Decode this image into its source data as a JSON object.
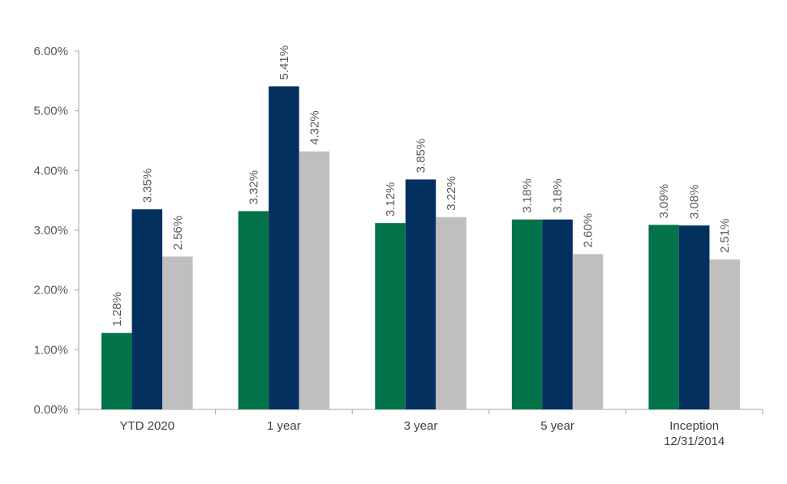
{
  "chart_data": {
    "type": "bar",
    "categories": [
      [
        "YTD 2020"
      ],
      [
        "1 year"
      ],
      [
        "3 year"
      ],
      [
        "5 year"
      ],
      [
        "Inception",
        "12/31/2014"
      ]
    ],
    "series": [
      {
        "color": "#04734A",
        "values": [
          1.28,
          3.32,
          3.12,
          3.18,
          3.09
        ],
        "labels": [
          "1.28%",
          "3.32%",
          "3.12%",
          "3.18%",
          "3.09%"
        ]
      },
      {
        "color": "#03305F",
        "values": [
          3.35,
          5.41,
          3.85,
          3.18,
          3.08
        ],
        "labels": [
          "3.35%",
          "5.41%",
          "3.85%",
          "3.18%",
          "3.08%"
        ]
      },
      {
        "color": "#BFBFBF",
        "values": [
          2.56,
          4.32,
          3.22,
          2.6,
          2.51
        ],
        "labels": [
          "2.56%",
          "4.32%",
          "3.22%",
          "2.60%",
          "2.51%"
        ]
      }
    ],
    "y_ticks": [
      "0.00%",
      "1.00%",
      "2.00%",
      "3.00%",
      "4.00%",
      "5.00%",
      "6.00%"
    ],
    "ylim": [
      0,
      6
    ],
    "grid": false,
    "legend": "none"
  }
}
